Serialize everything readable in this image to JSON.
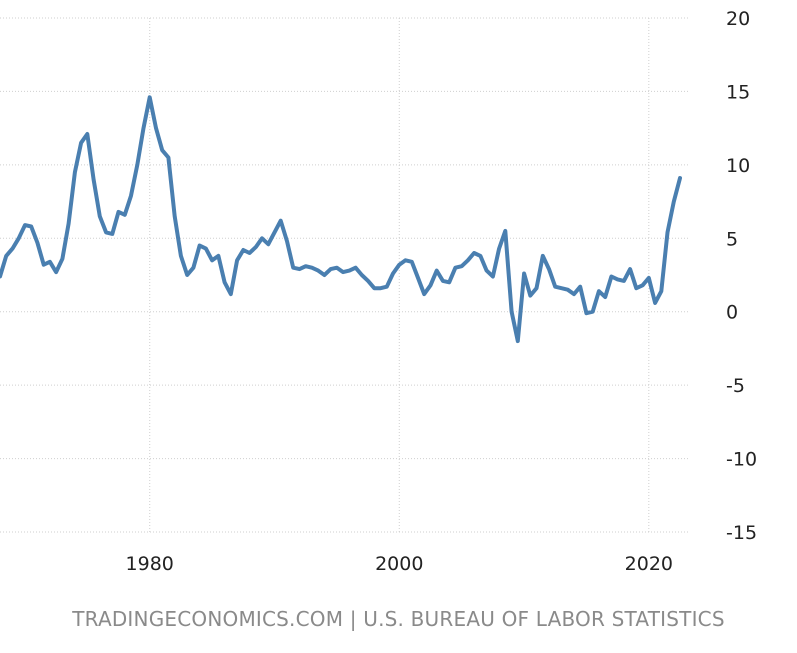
{
  "source_text": "TRADINGECONOMICS.COM | U.S. BUREAU OF LABOR STATISTICS",
  "colors": {
    "line": "#4a7fb0",
    "grid": "#cfcfcf",
    "text": "#222222",
    "source": "#8a8a8a"
  },
  "chart_data": {
    "type": "line",
    "title": "",
    "xlabel": "",
    "ylabel": "",
    "xlim": [
      1968.0,
      2023.3
    ],
    "ylim": [
      -15,
      20
    ],
    "yticks": [
      20,
      15,
      10,
      5,
      0,
      -5,
      -10,
      -15
    ],
    "xticks": [
      1980,
      2000,
      2020
    ],
    "grid": true,
    "series": [
      {
        "x": [
          1968.0,
          1968.5,
          1969.0,
          1969.5,
          1970.0,
          1970.5,
          1971.0,
          1971.5,
          1972.0,
          1972.5,
          1973.0,
          1973.5,
          1974.0,
          1974.5,
          1975.0,
          1975.5,
          1976.0,
          1976.5,
          1977.0,
          1977.5,
          1978.0,
          1978.5,
          1979.0,
          1979.5,
          1980.0,
          1980.5,
          1981.0,
          1981.5,
          1982.0,
          1982.5,
          1983.0,
          1983.5,
          1984.0,
          1984.5,
          1985.0,
          1985.5,
          1986.0,
          1986.5,
          1987.0,
          1987.5,
          1988.0,
          1988.5,
          1989.0,
          1989.5,
          1990.0,
          1990.5,
          1991.0,
          1991.5,
          1992.0,
          1992.5,
          1993.0,
          1993.5,
          1994.0,
          1994.5,
          1995.0,
          1995.5,
          1996.0,
          1996.5,
          1997.0,
          1997.5,
          1998.0,
          1998.5,
          1999.0,
          1999.5,
          2000.0,
          2000.5,
          2001.0,
          2001.5,
          2002.0,
          2002.5,
          2003.0,
          2003.5,
          2004.0,
          2004.5,
          2005.0,
          2005.5,
          2006.0,
          2006.5,
          2007.0,
          2007.5,
          2008.0,
          2008.5,
          2009.0,
          2009.5,
          2010.0,
          2010.5,
          2011.0,
          2011.5,
          2012.0,
          2012.5,
          2013.0,
          2013.5,
          2014.0,
          2014.5,
          2015.0,
          2015.5,
          2016.0,
          2016.5,
          2017.0,
          2017.5,
          2018.0,
          2018.5,
          2019.0,
          2019.5,
          2020.0,
          2020.5,
          2021.0,
          2021.5,
          2022.0,
          2022.5
        ],
        "values": [
          2.4,
          3.8,
          4.3,
          5.0,
          5.9,
          5.8,
          4.7,
          3.2,
          3.4,
          2.7,
          3.6,
          6.0,
          9.5,
          11.5,
          12.1,
          9.0,
          6.5,
          5.4,
          5.3,
          6.8,
          6.6,
          7.9,
          10.0,
          12.5,
          14.6,
          12.5,
          11.0,
          10.5,
          6.5,
          3.8,
          2.5,
          3.0,
          4.5,
          4.3,
          3.5,
          3.8,
          2.0,
          1.2,
          3.5,
          4.2,
          4.0,
          4.4,
          5.0,
          4.6,
          5.4,
          6.2,
          4.8,
          3.0,
          2.9,
          3.1,
          3.0,
          2.8,
          2.5,
          2.9,
          3.0,
          2.7,
          2.8,
          3.0,
          2.5,
          2.1,
          1.6,
          1.6,
          1.7,
          2.6,
          3.2,
          3.5,
          3.4,
          2.3,
          1.2,
          1.8,
          2.8,
          2.1,
          2.0,
          3.0,
          3.1,
          3.5,
          4.0,
          3.8,
          2.8,
          2.4,
          4.3,
          5.5,
          0.0,
          -2.0,
          2.6,
          1.1,
          1.6,
          3.8,
          2.9,
          1.7,
          1.6,
          1.5,
          1.2,
          1.7,
          -0.1,
          0.0,
          1.4,
          1.0,
          2.4,
          2.2,
          2.1,
          2.9,
          1.6,
          1.8,
          2.3,
          0.6,
          1.4,
          5.4,
          7.5,
          9.1
        ]
      }
    ]
  }
}
